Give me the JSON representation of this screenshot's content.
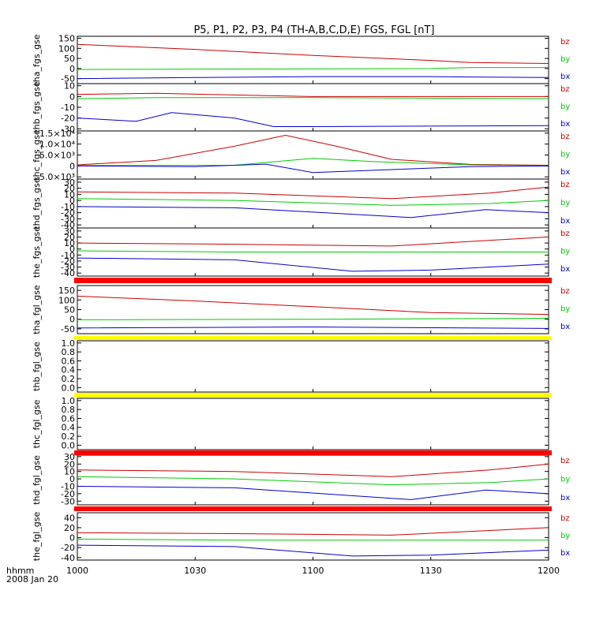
{
  "title": "P5, P1, P2, P3, P4 (TH-A,B,C,D,E) FGS, FGL [nT]",
  "footer": {
    "axis_unit": "hhmm",
    "date": "2008 Jan 20"
  },
  "colors": {
    "bz": "#cc0000",
    "by": "#00cc00",
    "bx": "#0000cc",
    "bar_red": "#ff0000",
    "bar_yellow": "#ffff00"
  },
  "chart_data": {
    "type": "line",
    "xlim": [
      0,
      120
    ],
    "xticks": [
      {
        "v": 0,
        "label": "1000"
      },
      {
        "v": 30,
        "label": "1030"
      },
      {
        "v": 60,
        "label": "1100"
      },
      {
        "v": 90,
        "label": "1130"
      },
      {
        "v": 120,
        "label": "1200"
      }
    ],
    "panels": [
      {
        "ylabel": "tha_fgs_gse",
        "ylim": [
          -75,
          160
        ],
        "yticks": [
          {
            "v": 150,
            "label": "150"
          },
          {
            "v": 100,
            "label": "100"
          },
          {
            "v": 50,
            "label": "50"
          },
          {
            "v": 0,
            "label": "0"
          },
          {
            "v": -50,
            "label": "-50"
          }
        ],
        "series": [
          {
            "name": "bz",
            "x": [
              0,
              30,
              60,
              90,
              100,
              120
            ],
            "y": [
              120,
              95,
              65,
              40,
              30,
              25
            ]
          },
          {
            "name": "by",
            "x": [
              0,
              30,
              60,
              90,
              100,
              120
            ],
            "y": [
              -5,
              -3,
              -2,
              0,
              5,
              5
            ]
          },
          {
            "name": "bx",
            "x": [
              0,
              30,
              60,
              90,
              100,
              120
            ],
            "y": [
              -50,
              -45,
              -40,
              -40,
              -42,
              -45
            ]
          }
        ]
      },
      {
        "ylabel": "thb_fgs_gse",
        "ylim": [
          -32,
          12
        ],
        "yticks": [
          {
            "v": 10,
            "label": "10"
          },
          {
            "v": 0,
            "label": "0"
          },
          {
            "v": -10,
            "label": "-10"
          },
          {
            "v": -20,
            "label": "-20"
          },
          {
            "v": -30,
            "label": "-30"
          }
        ],
        "series": [
          {
            "name": "bz",
            "x": [
              0,
              20,
              60,
              120
            ],
            "y": [
              2,
              3,
              0,
              0
            ]
          },
          {
            "name": "by",
            "x": [
              0,
              20,
              60,
              120
            ],
            "y": [
              -2,
              -1,
              -1,
              -2
            ]
          },
          {
            "name": "bx",
            "x": [
              0,
              15,
              24,
              40,
              50,
              60,
              120
            ],
            "y": [
              -20,
              -23,
              -15,
              -20,
              -28,
              -28,
              -27
            ]
          }
        ]
      },
      {
        "ylabel": "thc_fgs_gse",
        "ylim": [
          -6000,
          16000
        ],
        "yticks": [
          {
            "v": 15000,
            "label": "1.5×10⁴"
          },
          {
            "v": 10000,
            "label": "1.0×10⁴"
          },
          {
            "v": 5000,
            "label": "5.0×10³"
          },
          {
            "v": 0,
            "label": "0"
          },
          {
            "v": -5000,
            "label": "-5.0×10³"
          }
        ],
        "series": [
          {
            "name": "bz",
            "x": [
              0,
              20,
              40,
              53,
              66,
              80,
              100,
              120
            ],
            "y": [
              500,
              2500,
              9000,
              14000,
              9000,
              3000,
              700,
              300
            ]
          },
          {
            "name": "by",
            "x": [
              0,
              40,
              60,
              75,
              100,
              120
            ],
            "y": [
              200,
              300,
              3500,
              2000,
              500,
              100
            ]
          },
          {
            "name": "bx",
            "x": [
              0,
              30,
              48,
              60,
              100,
              120
            ],
            "y": [
              0,
              -300,
              800,
              -3000,
              -300,
              0
            ]
          }
        ]
      },
      {
        "ylabel": "thd_fgs_gse",
        "ylim": [
          -45,
          35
        ],
        "yticks": [
          {
            "v": 30,
            "label": "30"
          },
          {
            "v": 20,
            "label": "20"
          },
          {
            "v": 10,
            "label": "10"
          },
          {
            "v": 0,
            "label": "0"
          },
          {
            "v": -10,
            "label": "-10"
          },
          {
            "v": -20,
            "label": "-20"
          },
          {
            "v": -30,
            "label": "-30"
          },
          {
            "v": -40,
            "label": "-40"
          }
        ],
        "series": [
          {
            "name": "bz",
            "x": [
              0,
              40,
              80,
              105,
              120
            ],
            "y": [
              14,
              12,
              3,
              12,
              22
            ]
          },
          {
            "name": "by",
            "x": [
              0,
              40,
              80,
              105,
              120
            ],
            "y": [
              3,
              0,
              -8,
              -5,
              0
            ]
          },
          {
            "name": "bx",
            "x": [
              0,
              40,
              85,
              104,
              120
            ],
            "y": [
              -10,
              -12,
              -28,
              -15,
              -20
            ]
          }
        ]
      },
      {
        "ylabel": "the_fgs_gse",
        "ylim": [
          -45,
          35
        ],
        "yticks": [
          {
            "v": 30,
            "label": "30"
          },
          {
            "v": 20,
            "label": "20"
          },
          {
            "v": 10,
            "label": "10"
          },
          {
            "v": 0,
            "label": "0"
          },
          {
            "v": -10,
            "label": "-10"
          },
          {
            "v": -20,
            "label": "-20"
          },
          {
            "v": -30,
            "label": "-30"
          },
          {
            "v": -40,
            "label": "-40"
          }
        ],
        "series": [
          {
            "name": "bz",
            "x": [
              0,
              40,
              80,
              120
            ],
            "y": [
              10,
              8,
              5,
              20
            ]
          },
          {
            "name": "by",
            "x": [
              0,
              40,
              85,
              120
            ],
            "y": [
              -3,
              -5,
              -5,
              -5
            ]
          },
          {
            "name": "bx",
            "x": [
              0,
              40,
              70,
              90,
              120
            ],
            "y": [
              -15,
              -18,
              -37,
              -35,
              -25
            ]
          }
        ]
      },
      {
        "ylabel": "tha_fgl_gse",
        "ylim": [
          -75,
          175
        ],
        "yticks": [
          {
            "v": 150,
            "label": "150"
          },
          {
            "v": 100,
            "label": "100"
          },
          {
            "v": 50,
            "label": "50"
          },
          {
            "v": 0,
            "label": "0"
          },
          {
            "v": -50,
            "label": "-50"
          }
        ],
        "series": [
          {
            "name": "bz",
            "x": [
              0,
              30,
              60,
              90,
              120
            ],
            "y": [
              120,
              95,
              65,
              35,
              25
            ]
          },
          {
            "name": "by",
            "x": [
              0,
              60,
              120
            ],
            "y": [
              -3,
              0,
              5
            ]
          },
          {
            "name": "bx",
            "x": [
              0,
              60,
              120
            ],
            "y": [
              -45,
              -40,
              -48
            ]
          }
        ]
      },
      {
        "ylabel": "thb_fgl_gse",
        "ylim": [
          -0.1,
          1.05
        ],
        "yticks": [
          {
            "v": 1.0,
            "label": "1.0"
          },
          {
            "v": 0.8,
            "label": "0.8"
          },
          {
            "v": 0.6,
            "label": "0.6"
          },
          {
            "v": 0.4,
            "label": "0.4"
          },
          {
            "v": 0.2,
            "label": "0.2"
          },
          {
            "v": 0.0,
            "label": "0.0"
          }
        ],
        "series": []
      },
      {
        "ylabel": "thc_fgl_gse",
        "ylim": [
          -0.1,
          1.05
        ],
        "yticks": [
          {
            "v": 1.0,
            "label": "1.0"
          },
          {
            "v": 0.8,
            "label": "0.8"
          },
          {
            "v": 0.6,
            "label": "0.6"
          },
          {
            "v": 0.4,
            "label": "0.4"
          },
          {
            "v": 0.2,
            "label": "0.2"
          },
          {
            "v": 0.0,
            "label": "0.0"
          }
        ],
        "series": []
      },
      {
        "ylabel": "thd_fgl_gse",
        "ylim": [
          -35,
          32
        ],
        "yticks": [
          {
            "v": 30,
            "label": "30"
          },
          {
            "v": 20,
            "label": "20"
          },
          {
            "v": 10,
            "label": "10"
          },
          {
            "v": 0,
            "label": "0"
          },
          {
            "v": -10,
            "label": "-10"
          },
          {
            "v": -20,
            "label": "-20"
          },
          {
            "v": -30,
            "label": "-30"
          }
        ],
        "series": [
          {
            "name": "bz",
            "x": [
              0,
              40,
              80,
              105,
              120
            ],
            "y": [
              12,
              10,
              3,
              12,
              20
            ]
          },
          {
            "name": "by",
            "x": [
              0,
              40,
              80,
              105,
              120
            ],
            "y": [
              3,
              0,
              -8,
              -5,
              0
            ]
          },
          {
            "name": "bx",
            "x": [
              0,
              40,
              85,
              104,
              120
            ],
            "y": [
              -10,
              -12,
              -28,
              -15,
              -20
            ]
          }
        ]
      },
      {
        "ylabel": "the_fgl_gse",
        "ylim": [
          -45,
          50
        ],
        "yticks": [
          {
            "v": 40,
            "label": "40"
          },
          {
            "v": 20,
            "label": "20"
          },
          {
            "v": 0,
            "label": "0"
          },
          {
            "v": -20,
            "label": "-20"
          },
          {
            "v": -40,
            "label": "-40"
          }
        ],
        "series": [
          {
            "name": "bz",
            "x": [
              0,
              40,
              80,
              120
            ],
            "y": [
              10,
              8,
              5,
              20
            ]
          },
          {
            "name": "by",
            "x": [
              0,
              40,
              85,
              120
            ],
            "y": [
              -3,
              -5,
              -5,
              -5
            ]
          },
          {
            "name": "bx",
            "x": [
              0,
              40,
              70,
              90,
              120
            ],
            "y": [
              -15,
              -18,
              -37,
              -35,
              -25
            ]
          }
        ]
      }
    ]
  }
}
